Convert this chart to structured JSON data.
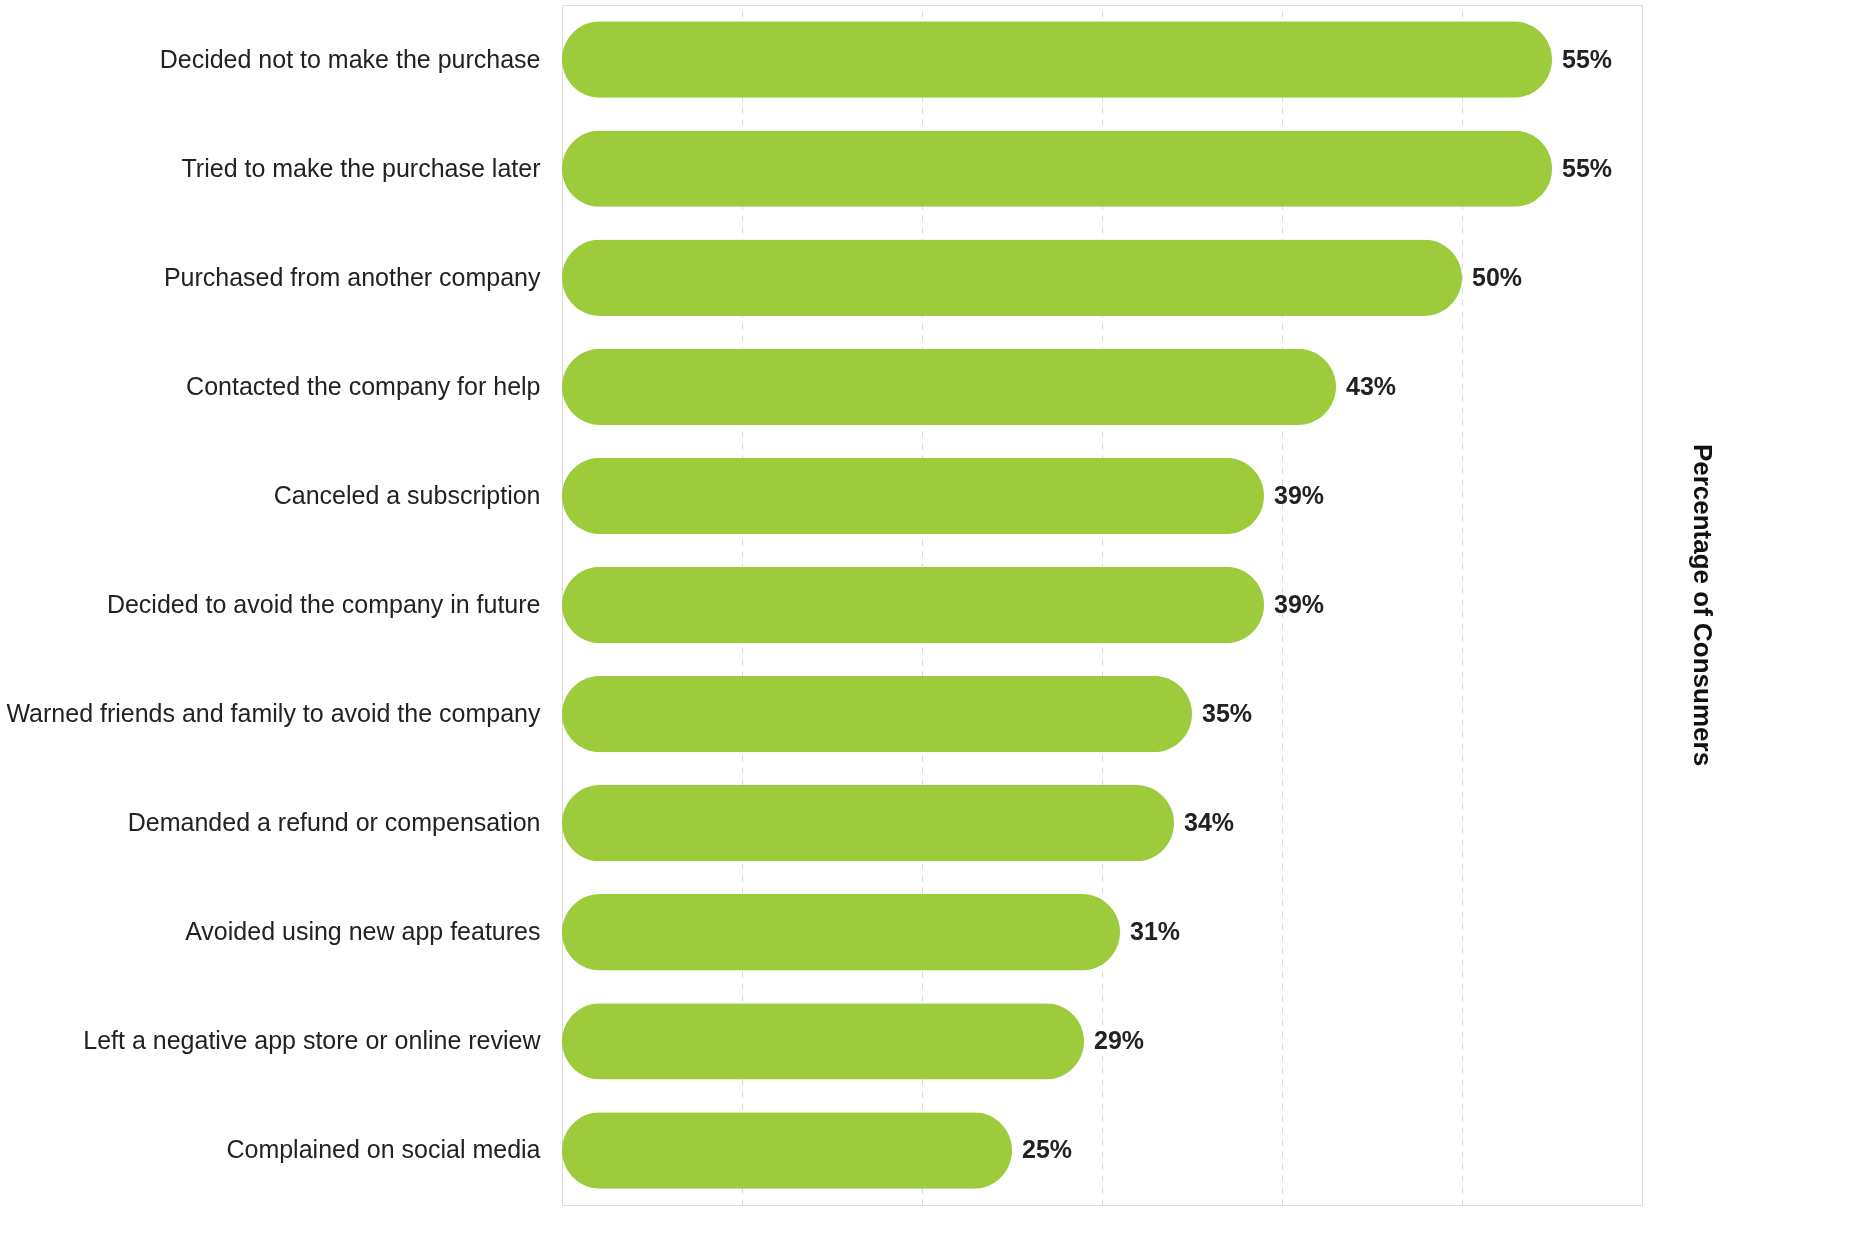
{
  "chart_data": {
    "type": "bar",
    "orientation": "horizontal",
    "y2label": "Percentage of Consumers",
    "categories": [
      "Decided not to make the purchase",
      "Tried to make the purchase later",
      "Purchased from another company",
      "Contacted the company for help",
      "Canceled a subscription",
      "Decided to avoid the company in future",
      "Warned friends and family to avoid the company",
      "Demanded a refund or compensation",
      "Avoided using new app features",
      "Left a negative app store or online review",
      "Complained on social media"
    ],
    "values": [
      55,
      55,
      50,
      43,
      39,
      39,
      35,
      34,
      31,
      29,
      25
    ],
    "value_labels": [
      "55%",
      "55%",
      "50%",
      "43%",
      "39%",
      "39%",
      "35%",
      "34%",
      "31%",
      "29%",
      "25%"
    ],
    "color": "#9ecb3b",
    "xlim": [
      0,
      60
    ],
    "xticks": [
      {
        "value": 0,
        "label": null
      },
      {
        "value": 10,
        "label": null
      },
      {
        "value": 20,
        "label": null
      },
      {
        "value": 30,
        "label": null
      },
      {
        "value": 40,
        "label": null
      },
      {
        "value": 50,
        "label": null
      },
      {
        "value": 60,
        "label": null
      }
    ],
    "grid": "x",
    "tick_labels": "y"
  }
}
